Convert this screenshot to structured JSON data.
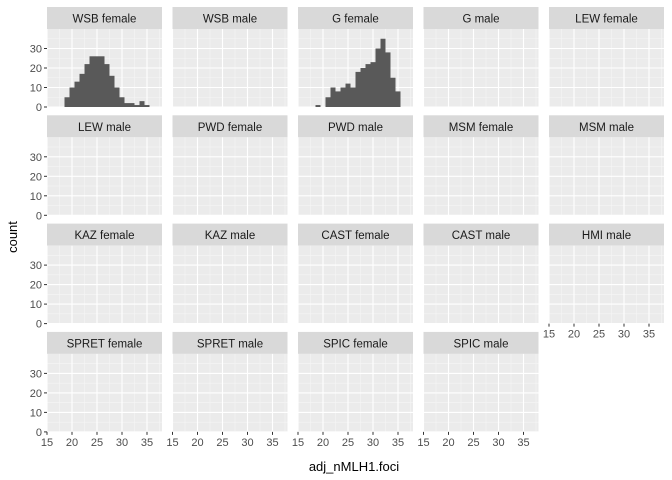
{
  "chart_data": {
    "type": "bar",
    "subtype": "faceted-histogram",
    "xlabel": "adj_nMLH1.foci",
    "ylabel": "count",
    "xlim": [
      15,
      38
    ],
    "ylim": [
      0,
      40
    ],
    "x_ticks": [
      15,
      20,
      25,
      30,
      35
    ],
    "y_ticks": [
      0,
      10,
      20,
      30
    ],
    "bin_start": 15.5,
    "bin_width": 1,
    "colors": {
      "bar": "#595959",
      "panel_bg": "#ebebeb",
      "grid_major": "#ffffff",
      "strip_bg": "#d9d9d9"
    },
    "facets": [
      {
        "label": "WSB female",
        "counts": [
          0,
          0,
          0,
          5,
          10,
          13,
          17,
          22,
          26,
          26,
          26,
          22,
          16,
          10,
          5,
          2,
          2,
          1,
          3,
          1,
          0,
          0,
          0
        ]
      },
      {
        "label": "WSB male",
        "counts": [
          0,
          0,
          0,
          0,
          0,
          0,
          0,
          0,
          0,
          0,
          0,
          0,
          0,
          0,
          0,
          0,
          0,
          0,
          0,
          0,
          0,
          0,
          0
        ]
      },
      {
        "label": "G female",
        "counts": [
          0,
          0,
          0,
          1,
          0,
          5,
          10,
          8,
          10,
          12,
          10,
          18,
          20,
          22,
          23,
          30,
          35,
          28,
          15,
          8,
          0,
          0,
          0
        ]
      },
      {
        "label": "G male",
        "counts": [
          0,
          0,
          0,
          0,
          0,
          0,
          0,
          0,
          0,
          0,
          0,
          0,
          0,
          0,
          0,
          0,
          0,
          0,
          0,
          0,
          0,
          0,
          0
        ]
      },
      {
        "label": "LEW female",
        "counts": [
          0,
          0,
          0,
          0,
          0,
          0,
          0,
          0,
          0,
          0,
          0,
          0,
          0,
          0,
          0,
          0,
          0,
          0,
          0,
          0,
          0,
          0,
          0
        ]
      },
      {
        "label": "LEW male",
        "counts": [
          0,
          0,
          0,
          0,
          0,
          0,
          0,
          0,
          0,
          0,
          0,
          0,
          0,
          0,
          0,
          0,
          0,
          0,
          0,
          0,
          0,
          0,
          0
        ]
      },
      {
        "label": "PWD female",
        "counts": [
          0,
          0,
          0,
          0,
          0,
          0,
          0,
          0,
          0,
          0,
          0,
          0,
          0,
          0,
          0,
          0,
          0,
          0,
          0,
          0,
          0,
          0,
          0
        ]
      },
      {
        "label": "PWD male",
        "counts": [
          0,
          0,
          0,
          0,
          0,
          0,
          0,
          0,
          0,
          0,
          0,
          0,
          0,
          0,
          0,
          0,
          0,
          0,
          0,
          0,
          0,
          0,
          0
        ]
      },
      {
        "label": "MSM female",
        "counts": [
          0,
          0,
          0,
          0,
          0,
          0,
          0,
          0,
          0,
          0,
          0,
          0,
          0,
          0,
          0,
          0,
          0,
          0,
          0,
          0,
          0,
          0,
          0
        ]
      },
      {
        "label": "MSM male",
        "counts": [
          0,
          0,
          0,
          0,
          0,
          0,
          0,
          0,
          0,
          0,
          0,
          0,
          0,
          0,
          0,
          0,
          0,
          0,
          0,
          0,
          0,
          0,
          0
        ]
      },
      {
        "label": "KAZ female",
        "counts": [
          0,
          0,
          0,
          0,
          0,
          0,
          0,
          0,
          0,
          0,
          0,
          0,
          0,
          0,
          0,
          0,
          0,
          0,
          0,
          0,
          0,
          0,
          0
        ]
      },
      {
        "label": "KAZ male",
        "counts": [
          0,
          0,
          0,
          0,
          0,
          0,
          0,
          0,
          0,
          0,
          0,
          0,
          0,
          0,
          0,
          0,
          0,
          0,
          0,
          0,
          0,
          0,
          0
        ]
      },
      {
        "label": "CAST female",
        "counts": [
          0,
          0,
          0,
          0,
          0,
          0,
          0,
          0,
          0,
          0,
          0,
          0,
          0,
          0,
          0,
          0,
          0,
          0,
          0,
          0,
          0,
          0,
          0
        ]
      },
      {
        "label": "CAST male",
        "counts": [
          0,
          0,
          0,
          0,
          0,
          0,
          0,
          0,
          0,
          0,
          0,
          0,
          0,
          0,
          0,
          0,
          0,
          0,
          0,
          0,
          0,
          0,
          0
        ]
      },
      {
        "label": "HMI male",
        "counts": [
          0,
          0,
          0,
          0,
          0,
          0,
          0,
          0,
          0,
          0,
          0,
          0,
          0,
          0,
          0,
          0,
          0,
          0,
          0,
          0,
          0,
          0,
          0
        ]
      },
      {
        "label": "SPRET female",
        "counts": [
          0,
          0,
          0,
          0,
          0,
          0,
          0,
          0,
          0,
          0,
          0,
          0,
          0,
          0,
          0,
          0,
          0,
          0,
          0,
          0,
          0,
          0,
          0
        ]
      },
      {
        "label": "SPRET male",
        "counts": [
          0,
          0,
          0,
          0,
          0,
          0,
          0,
          0,
          0,
          0,
          0,
          0,
          0,
          0,
          0,
          0,
          0,
          0,
          0,
          0,
          0,
          0,
          0
        ]
      },
      {
        "label": "SPIC female",
        "counts": [
          0,
          0,
          0,
          0,
          0,
          0,
          0,
          0,
          0,
          0,
          0,
          0,
          0,
          0,
          0,
          0,
          0,
          0,
          0,
          0,
          0,
          0,
          0
        ]
      },
      {
        "label": "SPIC male",
        "counts": [
          0,
          0,
          0,
          0,
          0,
          0,
          0,
          0,
          0,
          0,
          0,
          0,
          0,
          0,
          0,
          0,
          0,
          0,
          0,
          0,
          0,
          0,
          0
        ]
      }
    ]
  }
}
